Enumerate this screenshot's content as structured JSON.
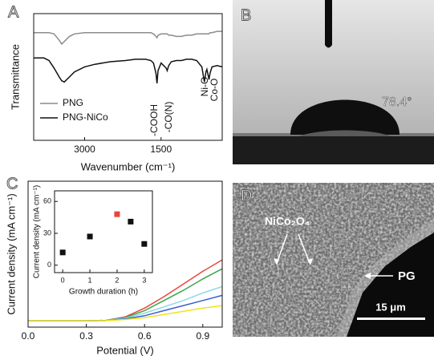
{
  "panels": [
    "A",
    "B",
    "C",
    "D"
  ],
  "chart_data": [
    {
      "type": "line",
      "x_label": "Wavenumber (cm⁻¹)",
      "y_label": "Transmittance",
      "xlim": [
        4000,
        300
      ],
      "ylim": [
        0,
        100
      ],
      "xticks": [
        3000,
        1500
      ],
      "x": [
        4000,
        3800,
        3700,
        3600,
        3500,
        3450,
        3400,
        3300,
        3200,
        3000,
        2800,
        2500,
        2200,
        2000,
        1800,
        1700,
        1650,
        1600,
        1580,
        1560,
        1500,
        1450,
        1400,
        1380,
        1350,
        1300,
        1200,
        1100,
        1000,
        900,
        800,
        700,
        650,
        620,
        600,
        570,
        560,
        540,
        500,
        400,
        300
      ],
      "series": [
        {
          "name": "PNG",
          "color": "#8c8c8c",
          "values": [
            85,
            85,
            85,
            84,
            79,
            76,
            78,
            82,
            84,
            85,
            85,
            85,
            85,
            85,
            85,
            85,
            84,
            82,
            81,
            83,
            84,
            84,
            84,
            84,
            83,
            83,
            82,
            82,
            83,
            83,
            84,
            84,
            84,
            84,
            84,
            84,
            84,
            85,
            85,
            86,
            86
          ]
        },
        {
          "name": "PNG-NiCo",
          "color": "#111111",
          "values": [
            65,
            65,
            63,
            57,
            50,
            47,
            46,
            50,
            54,
            58,
            60,
            62,
            63,
            64,
            64,
            63,
            61,
            53,
            45,
            55,
            61,
            59,
            57,
            55,
            59,
            62,
            63,
            63,
            64,
            64,
            63,
            58,
            46,
            54,
            56,
            50,
            48,
            53,
            58,
            59,
            58
          ]
        }
      ],
      "legend": "lower left",
      "annotations": [
        "-COOH",
        "-CO(N)",
        "Ni-O",
        "Co-O"
      ]
    },
    {
      "type": "line",
      "x_label": "Potential (V)",
      "y_label": "Current density (mA cm⁻¹)",
      "xlim": [
        0,
        1.0
      ],
      "ylim": [
        -5,
        110
      ],
      "xticks": [
        {
          "value": 0,
          "label": "0.0"
        },
        0.3,
        0.6,
        0.9
      ],
      "x": [
        0,
        0.1,
        0.2,
        0.3,
        0.4,
        0.5,
        0.6,
        0.7,
        0.8,
        0.9,
        1.0
      ],
      "series": [
        {
          "color": "#e8463a",
          "values": [
            0,
            0,
            0,
            0,
            0.3,
            3,
            10,
            19,
            29,
            39,
            48
          ]
        },
        {
          "color": "#3aa64a",
          "values": [
            0,
            0,
            0,
            0,
            0.3,
            2.5,
            8,
            16,
            24,
            33,
            41
          ]
        },
        {
          "color": "#8fd8e6",
          "values": [
            0,
            0,
            0,
            0,
            0.2,
            2,
            6,
            11,
            16,
            22,
            27
          ]
        },
        {
          "color": "#3a5fd0",
          "values": [
            0,
            0,
            0,
            0,
            0.1,
            1.5,
            4,
            8,
            12,
            16,
            20
          ]
        },
        {
          "color": "#f2e21c",
          "values": [
            0,
            0,
            0,
            0,
            0.1,
            1,
            2.5,
            5,
            7.5,
            10,
            12
          ]
        }
      ]
    },
    {
      "type": "scatter",
      "x_label": "Growth duration (h)",
      "y_label": "Current density (mA cm⁻¹)",
      "xlim": [
        -0.3,
        3.3
      ],
      "ylim": [
        -7,
        70
      ],
      "xticks": [
        0,
        1,
        2,
        3
      ],
      "yticks": [
        0,
        30,
        60
      ],
      "x": [
        0,
        1,
        2,
        2.5,
        3
      ],
      "values": [
        12,
        27,
        48,
        41,
        20
      ],
      "point_colors": [
        "#111111",
        "#111111",
        "#e8463a",
        "#111111",
        "#111111"
      ]
    }
  ],
  "contact_angle": {
    "label": "78.4°"
  },
  "sem": {
    "film": "NiCo₂O₄",
    "substrate": "PG",
    "scale_bar": "15 μm"
  }
}
